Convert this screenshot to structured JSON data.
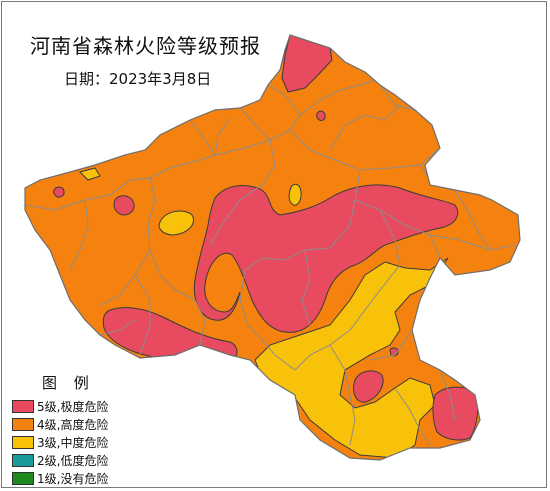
{
  "map": {
    "title": "河南省森林火险等级预报",
    "date_label": "日期：2023年3月8日"
  },
  "legend": {
    "title": "图 例",
    "items": [
      {
        "label": "5级,极度危险",
        "color": "#e84a5f"
      },
      {
        "label": "4级,高度危险",
        "color": "#f5820f"
      },
      {
        "label": "3级,中度危险",
        "color": "#f8c20a"
      },
      {
        "label": "2级,低度危险",
        "color": "#1a9a9a"
      },
      {
        "label": "1级,没有危险",
        "color": "#1e8a1e"
      }
    ]
  },
  "colors": {
    "level5": "#e84a5f",
    "level4": "#f5820f",
    "level3": "#f8c20a",
    "boundary": "#8c8c8c",
    "zone_outline": "#3a3a3a"
  }
}
